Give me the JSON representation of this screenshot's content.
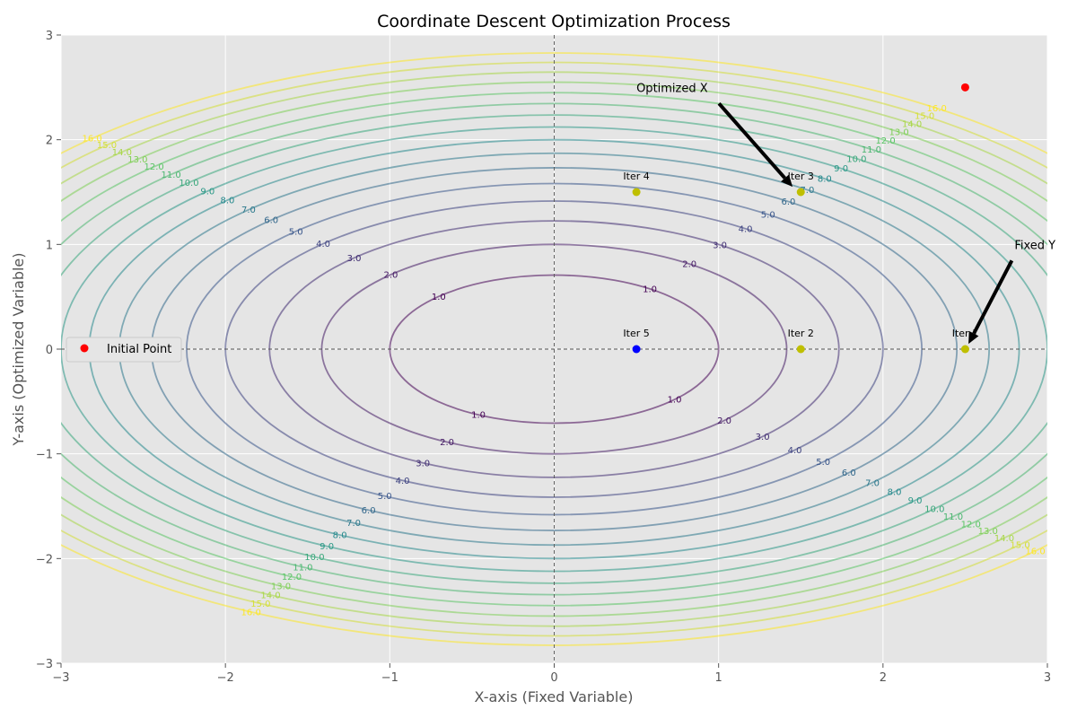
{
  "chart_data": {
    "type": "scatter",
    "title": "Coordinate Descent Optimization Process",
    "xlabel": "X-axis (Fixed Variable)",
    "ylabel": "Y-axis (Optimized Variable)",
    "xlim": [
      -3,
      3
    ],
    "ylim": [
      -3,
      3
    ],
    "xticks": [
      -3,
      -2,
      -1,
      0,
      1,
      2,
      3
    ],
    "yticks": [
      -3,
      -2,
      -1,
      0,
      1,
      2,
      3
    ],
    "grid": true,
    "background": "#e5e5e5",
    "contour": {
      "function": "f(x, y) = x^2 + 2*y^2",
      "levels": [
        1,
        2,
        3,
        4,
        5,
        6,
        7,
        8,
        9,
        10,
        11,
        12,
        13,
        14,
        15,
        16
      ],
      "level_labels": [
        "1.0",
        "2.0",
        "3.0",
        "4.0",
        "5.0",
        "6.0",
        "7.0",
        "8.0",
        "9.0",
        "10.0",
        "11.0",
        "12.0",
        "13.0",
        "14.0",
        "15.0",
        "16.0"
      ],
      "colormap": "viridis"
    },
    "points": [
      {
        "x": 2.5,
        "y": 2.5,
        "color": "#ff0000",
        "label": ""
      },
      {
        "x": 2.5,
        "y": 0.0,
        "color": "#bfbf00",
        "label": "Iter 1"
      },
      {
        "x": 1.5,
        "y": 0.0,
        "color": "#bfbf00",
        "label": "Iter 2"
      },
      {
        "x": 1.5,
        "y": 1.5,
        "color": "#bfbf00",
        "label": "Iter 3"
      },
      {
        "x": 0.5,
        "y": 1.5,
        "color": "#bfbf00",
        "label": "Iter 4"
      },
      {
        "x": 0.5,
        "y": 0.0,
        "color": "#0000ff",
        "label": "Iter 5"
      }
    ],
    "reference_lines": {
      "x": 0,
      "y": 0
    },
    "annotations": [
      {
        "text": "Optimized X",
        "text_x": 0.5,
        "text_y": 2.5,
        "target_x": 1.45,
        "target_y": 1.55
      },
      {
        "text": "Fixed Y",
        "text_x": 2.8,
        "text_y": 1.0,
        "target_x": 2.52,
        "target_y": 0.05
      }
    ],
    "legend": {
      "position": "center-left",
      "entries": [
        {
          "label": "Initial Point",
          "color": "#ff0000"
        }
      ]
    }
  }
}
